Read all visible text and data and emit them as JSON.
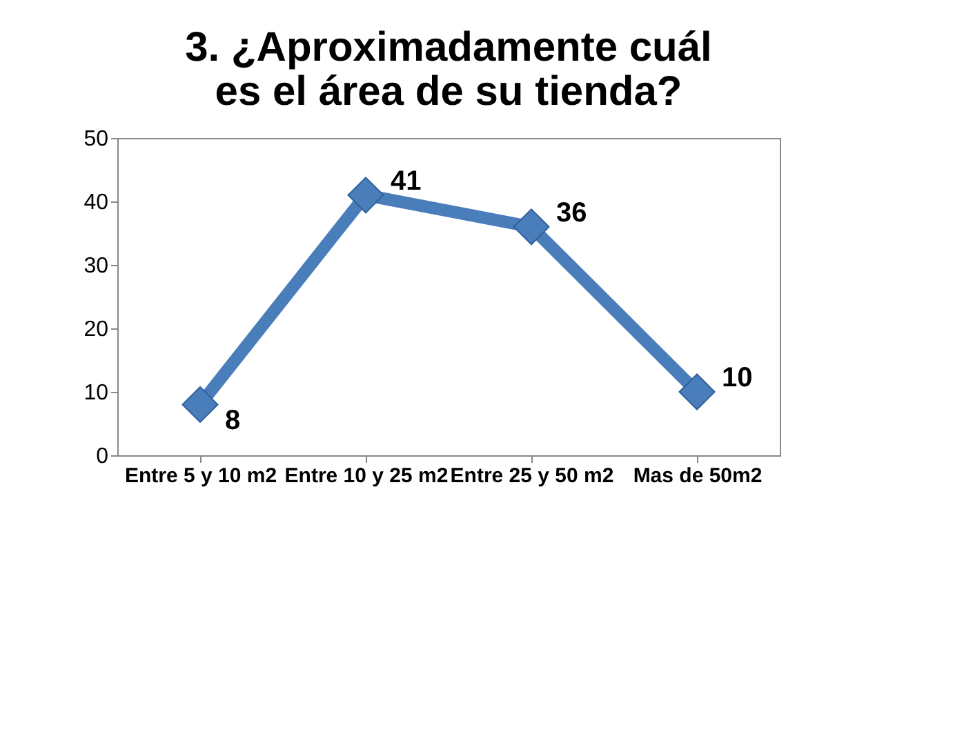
{
  "chart_data": {
    "type": "line",
    "title": [
      "3. ¿Aproximadamente cuál",
      "es el área de su tienda?"
    ],
    "categories": [
      "Entre 5 y 10 m2",
      "Entre 10 y 25 m2",
      "Entre 25 y 50 m2",
      "Mas de 50m2"
    ],
    "series": [
      {
        "color": "#4a7ebb",
        "values": [
          8,
          41,
          36,
          10
        ]
      }
    ],
    "ylim": [
      0,
      50
    ],
    "yticks": [
      0,
      10,
      20,
      30,
      40,
      50
    ],
    "grid": false,
    "marker": "diamond",
    "line_style": "solid",
    "data_labels": true
  }
}
